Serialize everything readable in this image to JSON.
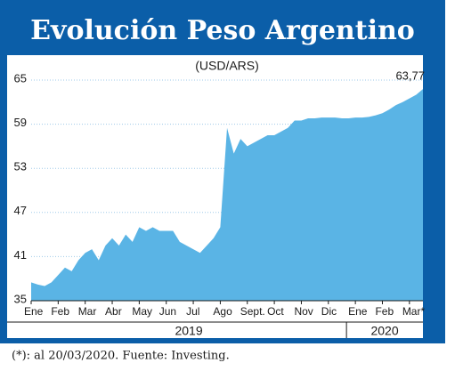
{
  "chart_data": {
    "type": "area",
    "title": "Evolución Peso Argentino",
    "subtitle": "(USD/ARS)",
    "categories": [
      "Ene",
      null,
      null,
      null,
      "Feb",
      null,
      null,
      null,
      "Mar",
      null,
      null,
      null,
      "Abr",
      null,
      null,
      null,
      "May",
      null,
      null,
      null,
      "Jun",
      null,
      null,
      null,
      "Jul",
      null,
      null,
      null,
      "Ago",
      null,
      null,
      null,
      "Sept.",
      null,
      null,
      null,
      "Oct",
      null,
      null,
      null,
      "Nov",
      null,
      null,
      null,
      "Dic",
      null,
      null,
      null,
      "Ene",
      null,
      null,
      null,
      "Feb",
      null,
      null,
      null,
      "Mar*",
      null,
      null
    ],
    "values": [
      37.5,
      37.2,
      37.0,
      37.5,
      38.5,
      39.5,
      39.0,
      40.5,
      41.5,
      42.0,
      40.5,
      42.5,
      43.5,
      42.5,
      44.0,
      43.0,
      45.0,
      44.5,
      45.0,
      44.5,
      44.5,
      44.5,
      43.0,
      42.5,
      42.0,
      41.5,
      42.5,
      43.5,
      45.0,
      58.5,
      55.0,
      57.0,
      56.0,
      56.5,
      57.0,
      57.5,
      57.5,
      58.0,
      58.5,
      59.5,
      59.5,
      59.8,
      59.8,
      59.9,
      59.9,
      59.9,
      59.8,
      59.8,
      59.9,
      59.9,
      60.0,
      60.2,
      60.5,
      61.0,
      61.6,
      62.0,
      62.5,
      63.0,
      63.77
    ],
    "value_labels": [
      null,
      null,
      null,
      null,
      null,
      null,
      null,
      null,
      null,
      null,
      null,
      null,
      null,
      null,
      null,
      null,
      null,
      null,
      null,
      null,
      null,
      null,
      null,
      null,
      null,
      null,
      null,
      null,
      null,
      null,
      null,
      null,
      null,
      null,
      null,
      null,
      null,
      null,
      null,
      null,
      null,
      null,
      null,
      null,
      null,
      null,
      null,
      null,
      null,
      null,
      null,
      null,
      null,
      null,
      null,
      null,
      null,
      null,
      "63,77"
    ],
    "color": "#5ab4e5",
    "ylim": [
      35,
      65
    ],
    "yticks": [
      35,
      41,
      47,
      53,
      59,
      65
    ],
    "grid": true,
    "year_labels": [
      "2019",
      "2020"
    ],
    "note": "(*): al 20/03/2020. Fuente: Investing."
  }
}
